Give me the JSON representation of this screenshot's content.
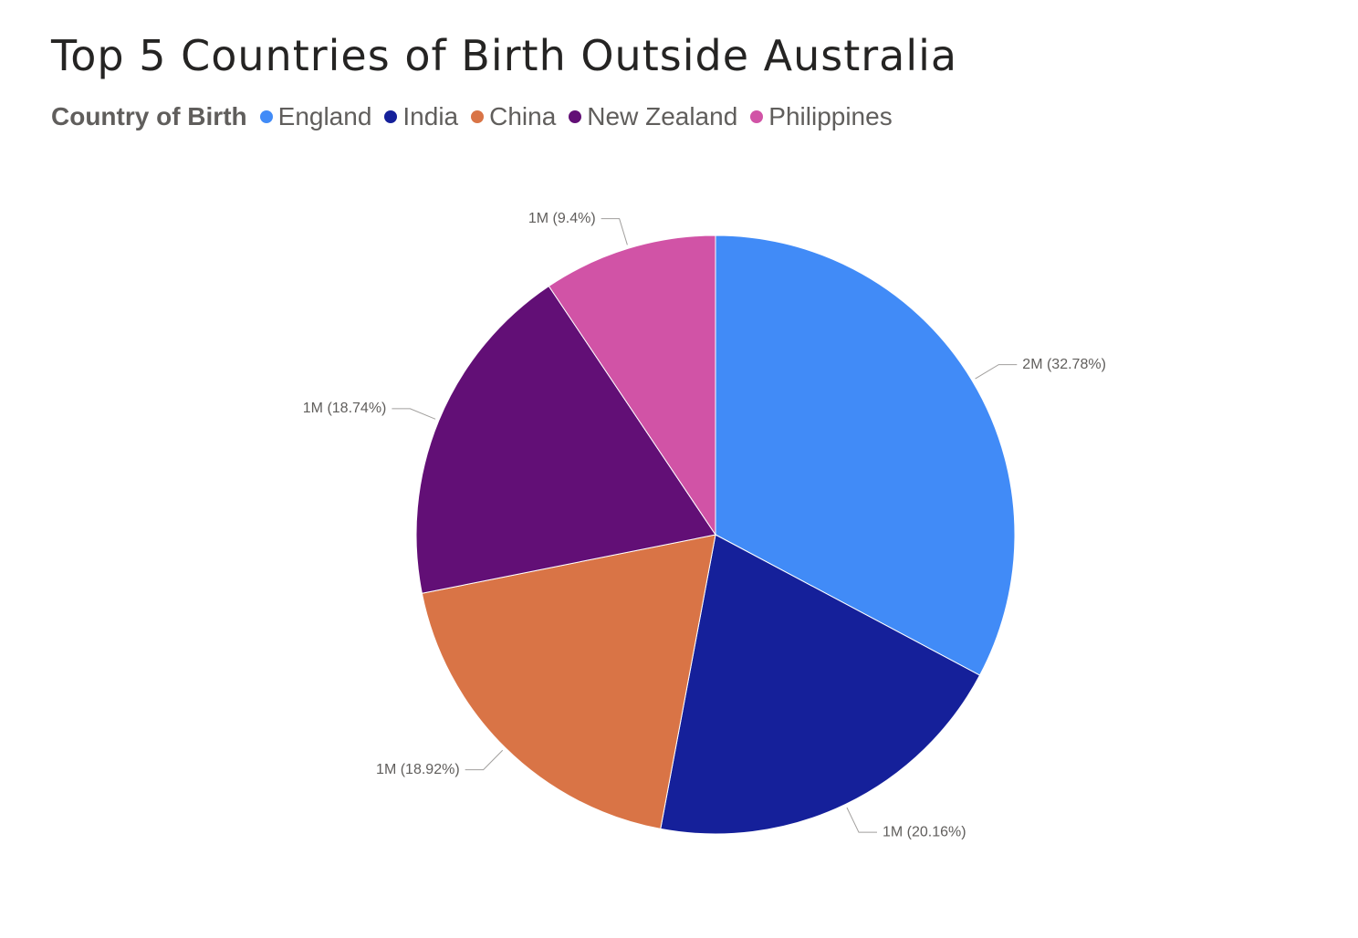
{
  "chart": {
    "title": "Top 5 Countries of Birth Outside Australia",
    "legend_title": "Country of Birth"
  },
  "chart_data": {
    "type": "pie",
    "title": "Top 5 Countries of Birth Outside Australia",
    "legend_title": "Country of Birth",
    "legend_position": "top-left",
    "slices": [
      {
        "label": "England",
        "percent": 32.78,
        "value_label": "2M",
        "data_label": "2M (32.78%)",
        "color": "#418bf7"
      },
      {
        "label": "India",
        "percent": 20.16,
        "value_label": "1M",
        "data_label": "1M (20.16%)",
        "color": "#15209a"
      },
      {
        "label": "China",
        "percent": 18.92,
        "value_label": "1M",
        "data_label": "1M (18.92%)",
        "color": "#d97446"
      },
      {
        "label": "New Zealand",
        "percent": 18.74,
        "value_label": "1M",
        "data_label": "1M (18.74%)",
        "color": "#620f76"
      },
      {
        "label": "Philippines",
        "percent": 9.4,
        "value_label": "1M",
        "data_label": "1M (9.4%)",
        "color": "#d153a6"
      }
    ]
  }
}
